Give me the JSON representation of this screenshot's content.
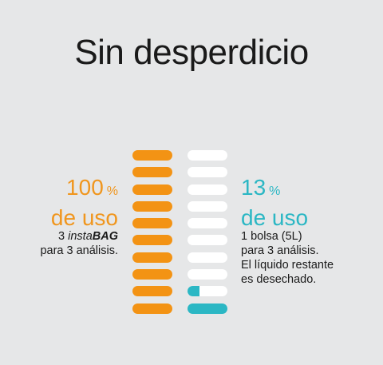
{
  "title": "Sin desperdicio",
  "left": {
    "value": "100",
    "unit_symbol": "%",
    "unit_text": "de uso",
    "desc_prefix": "3 ",
    "desc_italic": "insta",
    "desc_bold_italic": "BAG",
    "desc_line2": "para 3 análisis.",
    "usage_fraction": 1.0
  },
  "right": {
    "value": "13",
    "unit_symbol": "%",
    "unit_text": "de uso",
    "desc_lines": [
      "1 bolsa (5L)",
      "para 3 análisis.",
      "El líquido restante",
      "es desechado."
    ],
    "usage_fraction": 0.13
  },
  "colors": {
    "background": "#e6e7e8",
    "orange": "#f39314",
    "teal": "#2bb7c4",
    "empty": "#ffffff"
  },
  "bar_counts": {
    "left_total": 10,
    "right_total": 10,
    "right_full": 1,
    "right_partial_fraction": 0.3
  }
}
